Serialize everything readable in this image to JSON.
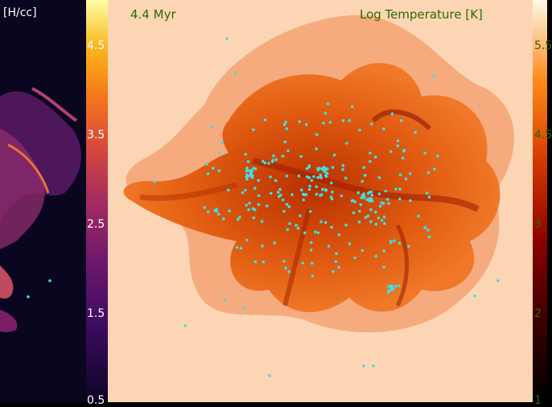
{
  "left_panel": {
    "unit_label": "[H/cc]",
    "colorbar_ticks": [
      "4.5",
      "3.5",
      "2.5",
      "1.5",
      "0.5"
    ]
  },
  "right_panel": {
    "time_label": "4.4 Myr",
    "quantity_label": "Log Temperature [K]",
    "colorbar_ticks": [
      "5.5",
      "4.5",
      "3",
      "2",
      "1"
    ]
  },
  "colors": {
    "star_markers": "#3ee0e0",
    "temp_colormap": "hot",
    "density_colormap": "inferno"
  }
}
